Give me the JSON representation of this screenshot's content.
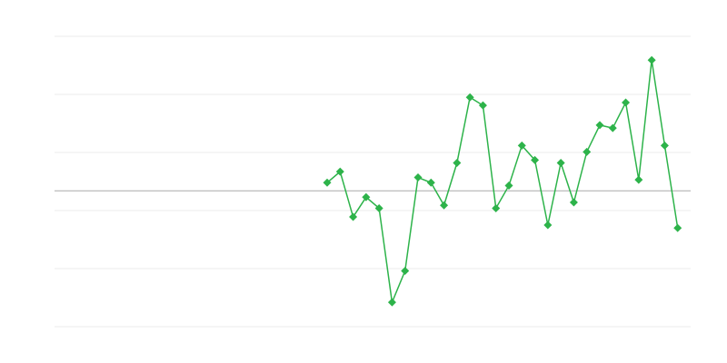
{
  "chart_data": {
    "type": "line",
    "title": "",
    "xlabel": "",
    "ylabel": "",
    "grid": true,
    "legend": "none",
    "xlim": [
      0,
      49
    ],
    "ylim": [
      -2.34,
      2.66
    ],
    "gridlines_y": [
      2.66,
      1.66,
      0.66,
      -0.34,
      -1.34,
      -2.34
    ],
    "baseline_y": 0,
    "color": "#2db34a",
    "marker": "diamond",
    "x": [
      21,
      22,
      23,
      24,
      25,
      26,
      27,
      28,
      29,
      30,
      31,
      32,
      33,
      34,
      35,
      36,
      37,
      38,
      39,
      40,
      41,
      42,
      43,
      44,
      45,
      46,
      47,
      48
    ],
    "y": [
      0.14,
      0.33,
      -0.45,
      -0.11,
      -0.3,
      -1.92,
      -1.38,
      0.23,
      0.14,
      -0.25,
      0.48,
      1.61,
      1.47,
      -0.3,
      0.09,
      0.78,
      0.53,
      -0.59,
      0.48,
      -0.2,
      0.67,
      1.13,
      1.08,
      1.52,
      0.19,
      2.25,
      0.78,
      -0.64
    ]
  }
}
